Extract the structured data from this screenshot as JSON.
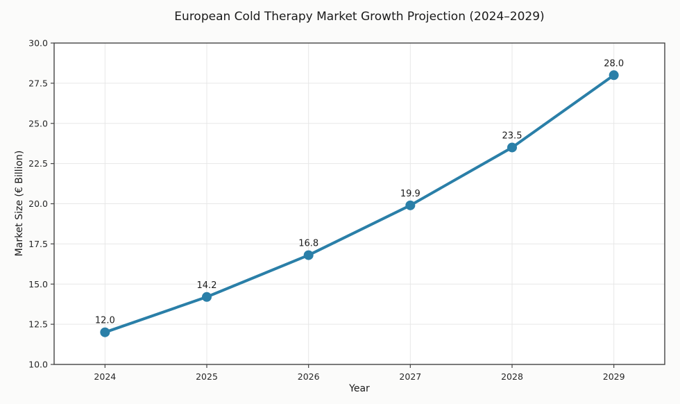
{
  "chart_data": {
    "type": "line",
    "title": "European Cold Therapy Market Growth Projection (2024–2029)",
    "xlabel": "Year",
    "ylabel": "Market Size (€ Billion)",
    "x": [
      2024,
      2025,
      2026,
      2027,
      2028,
      2029
    ],
    "series": [
      {
        "name": "Market Size",
        "values": [
          12.0,
          14.2,
          16.8,
          19.9,
          23.5,
          28.0
        ],
        "point_labels": [
          "12.0",
          "14.2",
          "16.8",
          "19.9",
          "23.5",
          "28.0"
        ]
      }
    ],
    "ylim": [
      10.0,
      30.0
    ],
    "ytick_step": 2.5,
    "ytick_labels": [
      "10.0",
      "12.5",
      "15.0",
      "17.5",
      "20.0",
      "22.5",
      "25.0",
      "27.5",
      "30.0"
    ],
    "grid": true,
    "legend_position": "none",
    "colors": {
      "line": "#2a7fa8",
      "marker": "#2a7fa8",
      "grid": "#e7e7e7",
      "spine": "#444444",
      "tick_text": "#262626",
      "label_text": "#1a1a1a",
      "plot_background": "#ffffff",
      "figure_background": "#fbfbfa"
    }
  }
}
